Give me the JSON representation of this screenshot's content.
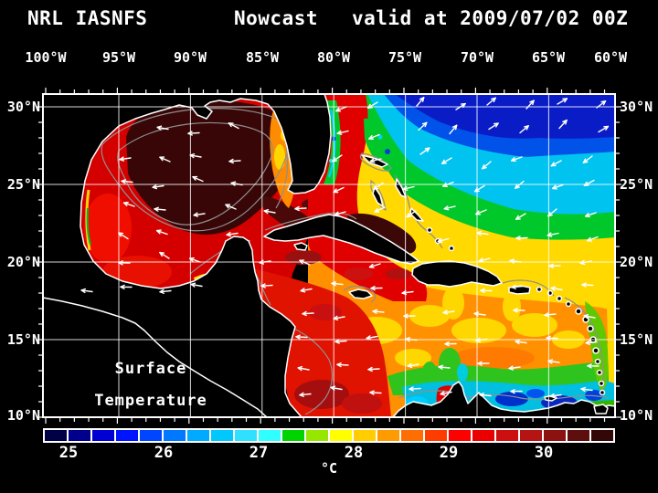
{
  "title": {
    "left": "NRL IASNFS",
    "center": "Nowcast",
    "right": "valid at 2009/07/02 00Z"
  },
  "axes": {
    "lon": [
      "100°W",
      "95°W",
      "90°W",
      "85°W",
      "80°W",
      "75°W",
      "70°W",
      "65°W",
      "60°W"
    ],
    "lat": [
      "30°N",
      "25°N",
      "20°N",
      "15°N",
      "10°N"
    ]
  },
  "map_caption": {
    "line1": "Surface",
    "line2": "Temperature"
  },
  "colorbar": {
    "unit": "°C",
    "ticks": [
      "25",
      "26",
      "27",
      "28",
      "29",
      "30"
    ],
    "colors": [
      "#000046",
      "#00008c",
      "#0000d2",
      "#0014ff",
      "#0046ff",
      "#0078ff",
      "#00aaff",
      "#00c8ff",
      "#2fe1ff",
      "#30ffff",
      "#00d400",
      "#96e600",
      "#ffff00",
      "#ffcd00",
      "#ff9b00",
      "#ff6e00",
      "#ff3c00",
      "#ff0000",
      "#ea0000",
      "#cd0f0f",
      "#b41414",
      "#8c1111",
      "#5f0e0e",
      "#330707"
    ]
  },
  "palette": {
    "background": "#000000",
    "land": "#000000",
    "coastline": "#ffffff",
    "grid": "#ffffff",
    "bathymetry_contour": "#8f8f8f",
    "wind_arrow": "#ffffff",
    "text": "#ffffff"
  }
}
